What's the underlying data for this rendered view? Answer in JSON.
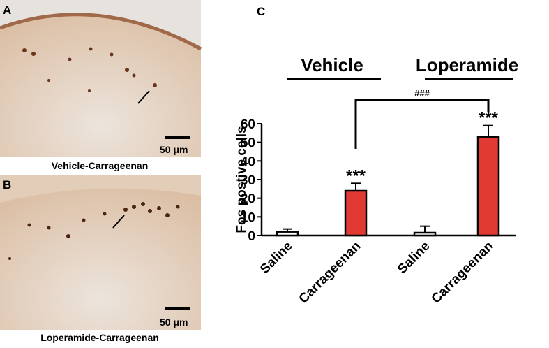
{
  "panels": [
    {
      "label": "A",
      "caption": "Vehicle-Carrageenan",
      "scale_bar": "50 μm"
    },
    {
      "label": "B",
      "caption": "Loperamide-Carrageenan",
      "scale_bar": "50 μm"
    }
  ],
  "chart_data": {
    "type": "bar",
    "panel_label": "C",
    "y_label": "Fos postive cells",
    "categories": [
      "Saline",
      "Carrageenan",
      "Saline",
      "Carrageenan"
    ],
    "values": [
      2,
      24,
      1.5,
      53
    ],
    "errors": [
      1.5,
      4,
      3.5,
      6
    ],
    "colors": [
      "#ffffff",
      "#e03a32",
      "#ffffff",
      "#e03a32"
    ],
    "significance": [
      null,
      "***",
      null,
      "***"
    ],
    "groups": [
      "Vehicle",
      "Loperamide"
    ],
    "comparison": "###",
    "ylim": [
      0,
      60
    ],
    "yticks": [
      0,
      10,
      20,
      30,
      40,
      50,
      60
    ]
  }
}
